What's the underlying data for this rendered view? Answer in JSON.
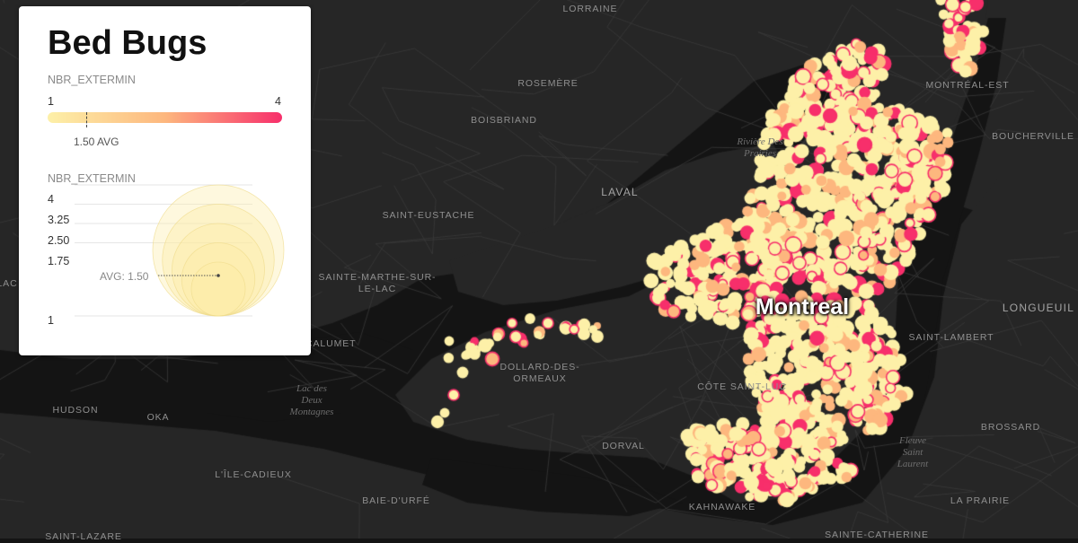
{
  "map": {
    "background": "#141414",
    "land": "#262626",
    "water": "#141414",
    "roads": "#3a3a3a",
    "colors": {
      "low": "#fdf0a8",
      "mid": "#fdb77e",
      "high": "#f72f6b"
    },
    "city_label": "Montreal",
    "places": [
      {
        "name": "LORRAINE",
        "big": false
      },
      {
        "name": "ROSEMÈRE",
        "big": false
      },
      {
        "name": "BOISBRIAND",
        "big": false
      },
      {
        "name": "LAVAL",
        "big": true
      },
      {
        "name": "SAINT-EUSTACHE",
        "big": false
      },
      {
        "name": "SAINTE-MARTHE-SUR-\nLE-LAC",
        "big": false
      },
      {
        "name": "DOLLARD-DES-\nORMEAUX",
        "big": false
      },
      {
        "name": "CÔTE SAINT-LUC",
        "big": false
      },
      {
        "name": "HUDSON",
        "big": false
      },
      {
        "name": "OKA",
        "big": false
      },
      {
        "name": "DORVAL",
        "big": false
      },
      {
        "name": "L'ÎLE-CADIEUX",
        "big": false
      },
      {
        "name": "BAIE-D'URFÉ",
        "big": false
      },
      {
        "name": "KAHNAWAKE",
        "big": false
      },
      {
        "name": "SAINTE-CATHERINE",
        "big": false
      },
      {
        "name": "SAINT-LAZARE",
        "big": false
      },
      {
        "name": "MONTRÉAL-EST",
        "big": false
      },
      {
        "name": "BOUCHERVILLE",
        "big": false
      },
      {
        "name": "LONGUEUIL",
        "big": true
      },
      {
        "name": "SAINT-LAMBERT",
        "big": false
      },
      {
        "name": "BROSSARD",
        "big": false
      },
      {
        "name": "LA PRAIRIE",
        "big": false
      },
      {
        "name": "-CALUMET",
        "big": false
      },
      {
        "name": "LAC",
        "big": false
      }
    ],
    "water_labels": [
      {
        "name": "Rivière Des\nPrairies"
      },
      {
        "name": "Lac des\nDeux\nMontagnes"
      },
      {
        "name": "Fleuve\nSaint\nLaurent"
      }
    ]
  },
  "legend": {
    "title": "Bed Bugs",
    "color_scale": {
      "field": "NBR_EXTERMIN",
      "min_label": "1",
      "max_label": "4",
      "min": 1,
      "max": 4,
      "avg_value": 1.5,
      "avg_label": "1.50 AVG"
    },
    "size_scale": {
      "field": "NBR_EXTERMIN",
      "labels": [
        "4",
        "3.25",
        "2.50",
        "1.75",
        "1"
      ],
      "values": [
        4,
        3.25,
        2.5,
        1.75,
        1
      ],
      "avg_value": 1.5,
      "avg_label": "AVG: 1.50"
    }
  }
}
